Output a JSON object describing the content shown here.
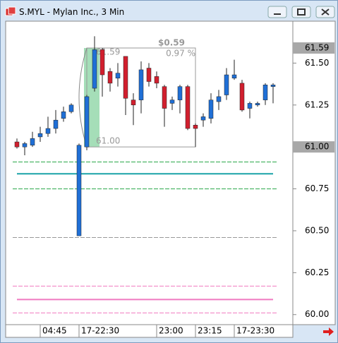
{
  "window": {
    "title": "S.MYL - Mylan Inc., 3 Min"
  },
  "chart_data": {
    "type": "candlestick",
    "categories": [
      null,
      null,
      null,
      "04:45",
      null,
      null,
      null,
      null,
      "17-22:30",
      null,
      null,
      null,
      null,
      null,
      null,
      null,
      null,
      null,
      "23:00",
      null,
      null,
      null,
      null,
      "23:15",
      null,
      null,
      null,
      null,
      "17-23:30",
      null,
      null,
      null,
      null,
      null
    ],
    "open": [
      61.03,
      61.0,
      61.01,
      61.06,
      61.08,
      61.11,
      61.17,
      61.21,
      60.47,
      61.0,
      61.35,
      61.58,
      61.45,
      61.41,
      61.54,
      61.28,
      61.28,
      61.47,
      61.42,
      61.36,
      61.26,
      61.28,
      61.36,
      61.13,
      61.16,
      61.17,
      61.27,
      61.31,
      61.41,
      61.38,
      61.23,
      61.25,
      61.28,
      61.36
    ],
    "high": [
      61.05,
      61.03,
      61.09,
      61.12,
      61.18,
      61.22,
      61.24,
      61.26,
      61.02,
      61.31,
      61.66,
      61.59,
      61.47,
      61.5,
      61.54,
      61.32,
      61.51,
      61.5,
      61.45,
      61.37,
      61.3,
      61.37,
      61.37,
      61.14,
      61.2,
      61.32,
      61.34,
      61.47,
      61.52,
      61.4,
      61.27,
      61.27,
      61.38,
      61.38
    ],
    "low": [
      60.99,
      60.95,
      61.0,
      61.03,
      61.06,
      61.08,
      61.15,
      61.2,
      60.47,
      60.98,
      61.33,
      61.3,
      61.33,
      61.36,
      61.19,
      61.13,
      61.2,
      61.36,
      61.35,
      61.12,
      61.22,
      61.2,
      61.1,
      61.0,
      61.12,
      61.14,
      61.22,
      61.28,
      61.4,
      61.21,
      61.17,
      61.24,
      61.25,
      61.26
    ],
    "close": [
      61.0,
      61.02,
      61.05,
      61.08,
      61.11,
      61.16,
      61.21,
      61.25,
      61.01,
      61.3,
      61.58,
      61.43,
      61.38,
      61.44,
      61.29,
      61.25,
      61.46,
      61.39,
      61.38,
      61.23,
      61.28,
      61.36,
      61.11,
      61.11,
      61.18,
      61.28,
      61.3,
      61.43,
      61.43,
      61.22,
      61.26,
      61.26,
      61.37,
      61.37
    ],
    "up_color": "#1f6fd6",
    "down_color": "#d11f2e",
    "ylim": [
      59.94,
      61.75
    ],
    "yticks": [
      {
        "value": 60,
        "label": "60.00"
      },
      {
        "value": 60.25,
        "label": "60.25"
      },
      {
        "value": 60.5,
        "label": "60.50"
      },
      {
        "value": 60.75,
        "label": "60.75"
      },
      {
        "value": 61,
        "label": "61.00"
      },
      {
        "value": 61.25,
        "label": "61.25"
      },
      {
        "value": 61.5,
        "label": "61.50"
      }
    ],
    "price_tags": [
      {
        "value": 61.59,
        "label": "61.59"
      },
      {
        "value": 61,
        "label": "61.00"
      }
    ],
    "levels": [
      {
        "value": 60.91,
        "color": "#2aa84a",
        "dashed": true
      },
      {
        "value": 60.84,
        "color": "#1aa3a8",
        "dashed": false
      },
      {
        "value": 60.75,
        "color": "#2aa84a",
        "dashed": true
      },
      {
        "value": 60.46,
        "color": "#999999",
        "dashed": true
      },
      {
        "value": 60.17,
        "color": "#f07ac0",
        "dashed": true
      },
      {
        "value": 60.09,
        "color": "#f07ac0",
        "dashed": false
      },
      {
        "value": 60.01,
        "color": "#f07ac0",
        "dashed": true
      }
    ],
    "measure": {
      "from": 61.0,
      "to": 61.59,
      "change_label": "$0.59",
      "pct_label": "0.97 %",
      "from_label": "61.00",
      "to_label": "61.59"
    }
  }
}
